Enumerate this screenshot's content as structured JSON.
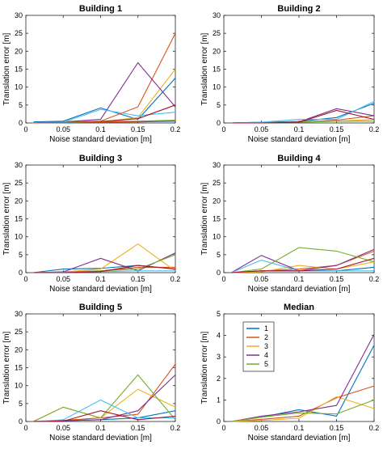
{
  "chart_data": [
    {
      "type": "line",
      "title": "Building 1",
      "xlabel": "Noise standard deviation [m]",
      "ylabel": "Translation error [m]",
      "xlim": [
        0,
        0.2
      ],
      "ylim": [
        0,
        30
      ],
      "xticks": [
        "0",
        "0.05",
        "0.1",
        "0.15",
        "0.2"
      ],
      "yticks": [
        "0",
        "5",
        "10",
        "15",
        "20",
        "25",
        "30"
      ],
      "x": [
        0.01,
        0.05,
        0.1,
        0.15,
        0.2
      ],
      "series": [
        {
          "color": "#0072BD",
          "values": [
            0.3,
            0.5,
            4.2,
            1.0,
            12.5
          ]
        },
        {
          "color": "#D95319",
          "values": [
            0.0,
            0.2,
            0.5,
            4.5,
            25.0
          ]
        },
        {
          "color": "#EDB120",
          "values": [
            0.0,
            0.1,
            0.3,
            1.5,
            15.0
          ]
        },
        {
          "color": "#7E2F8E",
          "values": [
            0.0,
            0.3,
            1.0,
            16.8,
            4.5
          ]
        },
        {
          "color": "#77AC30",
          "values": [
            0.0,
            0.2,
            0.5,
            0.5,
            0.8
          ]
        },
        {
          "color": "#4DBEEE",
          "values": [
            0.0,
            0.2,
            3.8,
            2.0,
            3.0
          ]
        },
        {
          "color": "#A2142F",
          "values": [
            0.0,
            0.1,
            0.4,
            1.2,
            5.0
          ]
        },
        {
          "color": "#0072BD",
          "values": [
            0.0,
            0.0,
            0.2,
            0.3,
            0.5
          ]
        },
        {
          "color": "#D95319",
          "values": [
            0.0,
            0.1,
            0.3,
            0.4,
            0.6
          ]
        }
      ]
    },
    {
      "type": "line",
      "title": "Building 2",
      "xlabel": "Noise standard deviation [m]",
      "ylabel": "Translation error [m]",
      "xlim": [
        0,
        0.2
      ],
      "ylim": [
        0,
        30
      ],
      "xticks": [
        "0",
        "0.05",
        "0.1",
        "0.15",
        "0.2"
      ],
      "yticks": [
        "0",
        "5",
        "10",
        "15",
        "20",
        "25",
        "30"
      ],
      "x": [
        0.01,
        0.05,
        0.1,
        0.15,
        0.2
      ],
      "series": [
        {
          "color": "#0072BD",
          "values": [
            0.0,
            0.2,
            0.4,
            1.5,
            5.5
          ]
        },
        {
          "color": "#D95319",
          "values": [
            0.0,
            0.1,
            0.2,
            0.8,
            2.0
          ]
        },
        {
          "color": "#EDB120",
          "values": [
            0.0,
            0.1,
            0.3,
            0.5,
            1.0
          ]
        },
        {
          "color": "#7E2F8E",
          "values": [
            0.0,
            0.1,
            0.3,
            4.0,
            2.0
          ]
        },
        {
          "color": "#77AC30",
          "values": [
            0.0,
            0.1,
            0.2,
            0.5,
            0.5
          ]
        },
        {
          "color": "#4DBEEE",
          "values": [
            0.0,
            0.2,
            1.0,
            1.0,
            6.0
          ]
        },
        {
          "color": "#A2142F",
          "values": [
            0.0,
            0.0,
            0.2,
            3.5,
            1.0
          ]
        }
      ]
    },
    {
      "type": "line",
      "title": "Building 3",
      "xlabel": "Noise standard deviation [m]",
      "ylabel": "Translation error [m]",
      "xlim": [
        0,
        0.2
      ],
      "ylim": [
        0,
        30
      ],
      "xticks": [
        "0",
        "0.05",
        "0.1",
        "0.15",
        "0.2"
      ],
      "yticks": [
        "0",
        "5",
        "10",
        "15",
        "20",
        "25",
        "30"
      ],
      "x": [
        0.01,
        0.05,
        0.1,
        0.15,
        0.2
      ],
      "series": [
        {
          "color": "#0072BD",
          "values": [
            0.0,
            1.0,
            1.2,
            2.0,
            1.0
          ]
        },
        {
          "color": "#D95319",
          "values": [
            0.0,
            0.2,
            0.5,
            1.5,
            1.5
          ]
        },
        {
          "color": "#EDB120",
          "values": [
            0.0,
            0.2,
            1.0,
            8.0,
            0.5
          ]
        },
        {
          "color": "#7E2F8E",
          "values": [
            0.0,
            0.2,
            4.0,
            0.5,
            5.5
          ]
        },
        {
          "color": "#77AC30",
          "values": [
            0.0,
            0.1,
            0.5,
            1.0,
            5.0
          ]
        },
        {
          "color": "#4DBEEE",
          "values": [
            0.0,
            0.1,
            0.3,
            0.5,
            0.5
          ]
        },
        {
          "color": "#A2142F",
          "values": [
            0.0,
            0.0,
            0.3,
            2.0,
            1.0
          ]
        }
      ]
    },
    {
      "type": "line",
      "title": "Building 4",
      "xlabel": "Noise standard deviation [m]",
      "ylabel": "Translation error [m]",
      "xlim": [
        0,
        0.2
      ],
      "ylim": [
        0,
        30
      ],
      "xticks": [
        "0",
        "0.05",
        "0.1",
        "0.15",
        "0.2"
      ],
      "yticks": [
        "0",
        "5",
        "10",
        "15",
        "20",
        "25",
        "30"
      ],
      "x": [
        0.01,
        0.05,
        0.1,
        0.15,
        0.2
      ],
      "series": [
        {
          "color": "#0072BD",
          "values": [
            0.0,
            0.5,
            0.5,
            0.5,
            1.5
          ]
        },
        {
          "color": "#D95319",
          "values": [
            0.0,
            0.5,
            1.0,
            2.0,
            6.0
          ]
        },
        {
          "color": "#EDB120",
          "values": [
            0.0,
            0.2,
            2.0,
            1.0,
            3.0
          ]
        },
        {
          "color": "#7E2F8E",
          "values": [
            0.0,
            4.8,
            0.5,
            2.0,
            6.5
          ]
        },
        {
          "color": "#77AC30",
          "values": [
            0.0,
            1.0,
            7.0,
            6.0,
            3.0
          ]
        },
        {
          "color": "#4DBEEE",
          "values": [
            0.0,
            3.5,
            0.5,
            0.5,
            0.5
          ]
        },
        {
          "color": "#A2142F",
          "values": [
            0.0,
            0.5,
            0.5,
            1.0,
            4.0
          ]
        }
      ]
    },
    {
      "type": "line",
      "title": "Building 5",
      "xlabel": "Noise standard deviation [m]",
      "ylabel": "Translation error [m]",
      "xlim": [
        0,
        0.2
      ],
      "ylim": [
        0,
        30
      ],
      "xticks": [
        "0",
        "0.05",
        "0.1",
        "0.15",
        "0.2"
      ],
      "yticks": [
        "0",
        "5",
        "10",
        "15",
        "20",
        "25",
        "30"
      ],
      "x": [
        0.01,
        0.05,
        0.1,
        0.15,
        0.2
      ],
      "series": [
        {
          "color": "#0072BD",
          "values": [
            0.0,
            0.2,
            0.5,
            1.0,
            3.0
          ]
        },
        {
          "color": "#D95319",
          "values": [
            0.0,
            0.3,
            1.0,
            2.0,
            16.0
          ]
        },
        {
          "color": "#EDB120",
          "values": [
            0.0,
            4.0,
            1.0,
            9.0,
            4.0
          ]
        },
        {
          "color": "#7E2F8E",
          "values": [
            0.0,
            0.2,
            0.5,
            3.0,
            13.0
          ]
        },
        {
          "color": "#77AC30",
          "values": [
            0.0,
            4.0,
            1.0,
            13.0,
            0.5
          ]
        },
        {
          "color": "#4DBEEE",
          "values": [
            0.0,
            0.5,
            6.0,
            1.0,
            1.0
          ]
        },
        {
          "color": "#A2142F",
          "values": [
            0.0,
            0.1,
            3.0,
            0.5,
            1.5
          ]
        }
      ]
    },
    {
      "type": "line",
      "title": "Median",
      "xlabel": "Noise standard deviation [m]",
      "ylabel": "Translation error [m]",
      "xlim": [
        0,
        0.2
      ],
      "ylim": [
        0,
        5
      ],
      "xticks": [
        "0",
        "0.05",
        "0.1",
        "0.15",
        "0.2"
      ],
      "yticks": [
        "0",
        "1",
        "2",
        "3",
        "4",
        "5"
      ],
      "x": [
        0.01,
        0.05,
        0.1,
        0.15,
        0.2
      ],
      "legend": "top-left",
      "series": [
        {
          "name": "1",
          "color": "#0072BD",
          "values": [
            0.0,
            0.2,
            0.55,
            0.25,
            3.55
          ]
        },
        {
          "name": "2",
          "color": "#D95319",
          "values": [
            0.0,
            0.1,
            0.25,
            1.1,
            1.65
          ]
        },
        {
          "name": "3",
          "color": "#EDB120",
          "values": [
            0.0,
            0.05,
            0.15,
            1.15,
            0.6
          ]
        },
        {
          "name": "4",
          "color": "#7E2F8E",
          "values": [
            0.0,
            0.25,
            0.45,
            0.75,
            4.05
          ]
        },
        {
          "name": "5",
          "color": "#77AC30",
          "values": [
            0.0,
            0.2,
            0.4,
            0.35,
            1.0
          ]
        }
      ]
    }
  ]
}
